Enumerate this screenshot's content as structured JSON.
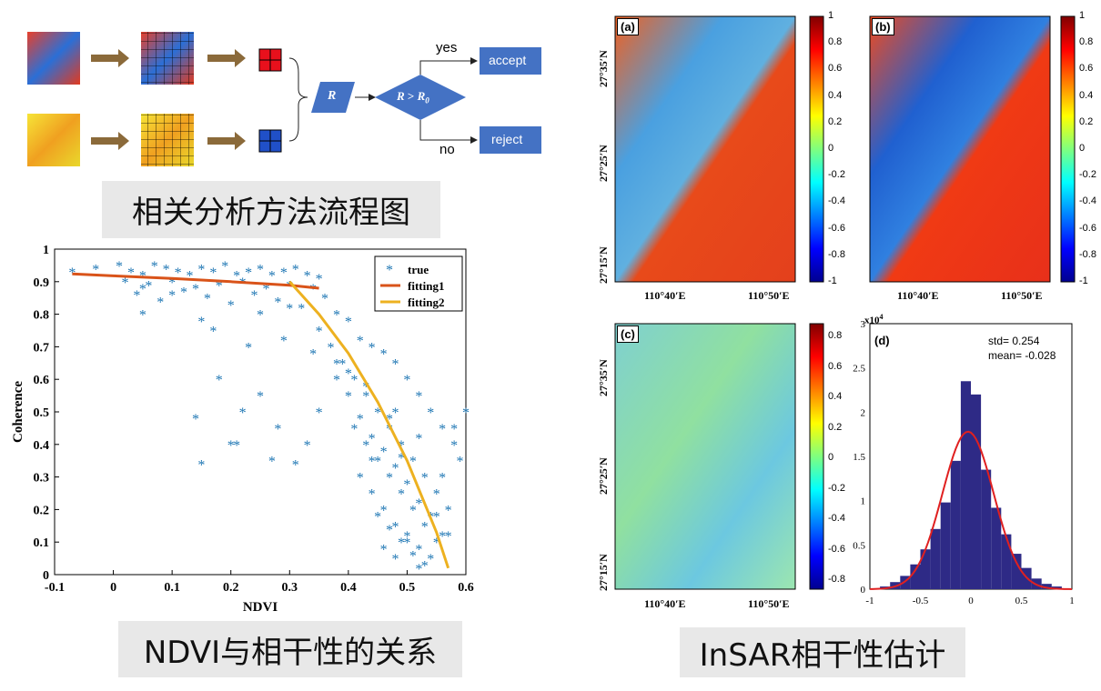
{
  "flowchart": {
    "yes_label": "yes",
    "no_label": "no",
    "accept_label": "accept",
    "reject_label": "reject",
    "r_label": "R",
    "condition_lhs": "R",
    "condition_op": " > ",
    "condition_rhs": "R",
    "condition_sub": "0",
    "colors": {
      "box": "#4472c4",
      "arrow": "#8b6a3a"
    },
    "caption": "相关分析方法流程图"
  },
  "scatter_caption": "NDVI与相干性的关系",
  "insar_caption": "InSAR相干性估计",
  "maps": {
    "panel_a_label": "(a)",
    "panel_b_label": "(b)",
    "panel_c_label": "(c)",
    "panel_d_label": "(d)",
    "lat_labels": [
      "27°35′N",
      "27°25′N",
      "27°15′N"
    ],
    "lon_labels": [
      "110°40′E",
      "110°50′E"
    ],
    "colorbar_ab_ticks": [
      "1",
      "0.8",
      "0.6",
      "0.4",
      "0.2",
      "0",
      "-0.2",
      "-0.4",
      "-0.6",
      "-0.8",
      "-1"
    ],
    "colorbar_c_ticks": [
      "0.8",
      "0.6",
      "0.4",
      "0.2",
      "0",
      "-0.2",
      "-0.4",
      "-0.6",
      "-0.8"
    ]
  },
  "chart_data": [
    {
      "type": "scatter",
      "xlabel": "NDVI",
      "ylabel": "Coherence",
      "xlim": [
        -0.1,
        0.6
      ],
      "ylim": [
        0,
        1
      ],
      "xticks": [
        "-0.1",
        "0",
        "0.1",
        "0.2",
        "0.3",
        "0.4",
        "0.5",
        "0.6"
      ],
      "yticks": [
        "0",
        "0.1",
        "0.2",
        "0.3",
        "0.4",
        "0.5",
        "0.6",
        "0.7",
        "0.8",
        "0.9",
        "1"
      ],
      "legend_position": "top-right",
      "series": [
        {
          "name": "true",
          "color": "#1f77b4",
          "marker": "asterisk",
          "x": [
            -0.07,
            -0.03,
            0.01,
            0.03,
            0.05,
            0.07,
            0.09,
            0.11,
            0.13,
            0.15,
            0.17,
            0.19,
            0.21,
            0.23,
            0.25,
            0.27,
            0.29,
            0.31,
            0.33,
            0.35,
            0.02,
            0.06,
            0.1,
            0.14,
            0.18,
            0.22,
            0.26,
            0.3,
            0.34,
            0.04,
            0.08,
            0.12,
            0.16,
            0.2,
            0.24,
            0.28,
            0.32,
            0.36,
            0.05,
            0.15,
            0.25,
            0.3,
            0.35,
            0.38,
            0.4,
            0.42,
            0.44,
            0.46,
            0.48,
            0.5,
            0.52,
            0.54,
            0.56,
            0.58,
            0.37,
            0.39,
            0.41,
            0.43,
            0.45,
            0.47,
            0.49,
            0.51,
            0.53,
            0.55,
            0.57,
            0.38,
            0.4,
            0.42,
            0.44,
            0.46,
            0.48,
            0.5,
            0.52,
            0.54,
            0.56,
            0.41,
            0.43,
            0.45,
            0.47,
            0.49,
            0.51,
            0.53,
            0.55,
            0.42,
            0.44,
            0.46,
            0.48,
            0.5,
            0.52,
            0.54,
            0.45,
            0.47,
            0.49,
            0.51,
            0.53,
            0.46,
            0.48,
            0.5,
            0.52,
            0.44,
            0.48,
            0.52,
            0.56,
            0.58,
            0.6,
            0.59,
            0.35,
            0.33,
            0.28,
            0.25,
            0.22,
            0.2,
            0.18,
            0.14,
            0.15,
            0.21,
            0.27,
            0.31,
            0.05,
            0.1,
            0.17,
            0.23,
            0.29,
            0.34,
            0.38,
            0.4,
            0.43,
            0.47,
            0.49,
            0.55,
            0.57
          ],
          "y": [
            0.93,
            0.94,
            0.95,
            0.93,
            0.92,
            0.95,
            0.94,
            0.93,
            0.92,
            0.94,
            0.93,
            0.95,
            0.92,
            0.93,
            0.94,
            0.92,
            0.93,
            0.94,
            0.92,
            0.91,
            0.9,
            0.89,
            0.9,
            0.88,
            0.89,
            0.9,
            0.88,
            0.89,
            0.88,
            0.86,
            0.84,
            0.87,
            0.85,
            0.83,
            0.86,
            0.84,
            0.82,
            0.85,
            0.8,
            0.78,
            0.8,
            0.82,
            0.75,
            0.8,
            0.78,
            0.72,
            0.7,
            0.68,
            0.65,
            0.6,
            0.55,
            0.5,
            0.45,
            0.4,
            0.7,
            0.65,
            0.6,
            0.55,
            0.5,
            0.45,
            0.4,
            0.35,
            0.3,
            0.25,
            0.2,
            0.6,
            0.55,
            0.48,
            0.42,
            0.38,
            0.33,
            0.28,
            0.22,
            0.18,
            0.12,
            0.45,
            0.4,
            0.35,
            0.3,
            0.25,
            0.2,
            0.15,
            0.1,
            0.3,
            0.25,
            0.2,
            0.15,
            0.12,
            0.08,
            0.05,
            0.18,
            0.14,
            0.1,
            0.06,
            0.03,
            0.08,
            0.05,
            0.1,
            0.02,
            0.35,
            0.5,
            0.42,
            0.3,
            0.45,
            0.5,
            0.35,
            0.5,
            0.4,
            0.45,
            0.55,
            0.5,
            0.4,
            0.6,
            0.48,
            0.34,
            0.4,
            0.35,
            0.34,
            0.88,
            0.86,
            0.75,
            0.7,
            0.72,
            0.68,
            0.65,
            0.62,
            0.58,
            0.48,
            0.36,
            0.18,
            0.12
          ]
        },
        {
          "name": "fitting1",
          "color": "#d95319",
          "x": [
            -0.07,
            0.0,
            0.1,
            0.2,
            0.3,
            0.35
          ],
          "y": [
            0.924,
            0.918,
            0.91,
            0.9,
            0.889,
            0.88
          ]
        },
        {
          "name": "fitting2",
          "color": "#edb120",
          "x": [
            0.3,
            0.35,
            0.4,
            0.45,
            0.5,
            0.55,
            0.57
          ],
          "y": [
            0.9,
            0.8,
            0.68,
            0.53,
            0.35,
            0.13,
            0.02
          ]
        }
      ]
    },
    {
      "type": "bar",
      "subtype": "histogram",
      "annotations": [
        "std= 0.254",
        "mean= -0.028"
      ],
      "y_multiplier": "x10",
      "y_multiplier_exp": "4",
      "xlim": [
        -1,
        1
      ],
      "ylim": [
        0,
        3
      ],
      "xticks": [
        "-1",
        "-0.5",
        "0",
        "0.5",
        "1"
      ],
      "yticks": [
        "0",
        "0.5",
        "1",
        "1.5",
        "2",
        "2.5",
        "3"
      ],
      "bar_color": "#2e2a86",
      "fit_color": "#e02020",
      "fit": {
        "type": "gaussian",
        "mean": -0.028,
        "std": 0.254,
        "peak": 1.78
      },
      "categories": [
        -0.95,
        -0.85,
        -0.75,
        -0.65,
        -0.55,
        -0.45,
        -0.35,
        -0.25,
        -0.15,
        -0.05,
        0.05,
        0.15,
        0.25,
        0.35,
        0.45,
        0.55,
        0.65,
        0.75,
        0.85,
        0.95
      ],
      "values": [
        0.01,
        0.03,
        0.08,
        0.15,
        0.28,
        0.45,
        0.68,
        0.98,
        1.45,
        2.35,
        2.2,
        1.35,
        0.92,
        0.62,
        0.4,
        0.24,
        0.12,
        0.06,
        0.03,
        0.01
      ]
    }
  ]
}
